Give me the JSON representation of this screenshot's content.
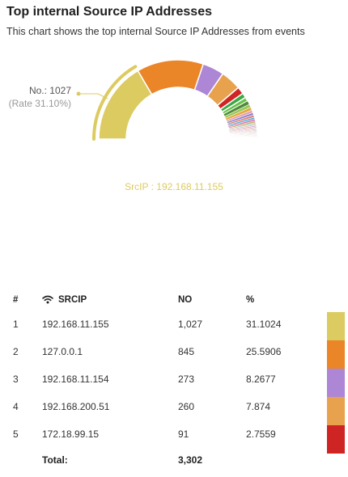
{
  "title": "Top internal Source IP Addresses",
  "subtitle": "This chart shows the top internal Source IP Addresses from events",
  "tooltip": {
    "no_text": "No.: 1027",
    "rate_text": "(Rate 31.10%)"
  },
  "selected_label": "SrcIP : 192.168.11.155",
  "table": {
    "headers": {
      "index": "#",
      "srcip": "SRCIP",
      "no": "NO",
      "pct": "%"
    },
    "rows": [
      {
        "index": "1",
        "ip": "192.168.11.155",
        "no": "1,027",
        "pct": "31.1024",
        "color": "#dccb60"
      },
      {
        "index": "2",
        "ip": "127.0.0.1",
        "no": "845",
        "pct": "25.5906",
        "color": "#ea8528"
      },
      {
        "index": "3",
        "ip": "192.168.11.154",
        "no": "273",
        "pct": "8.2677",
        "color": "#ad86d6"
      },
      {
        "index": "4",
        "ip": "192.168.200.51",
        "no": "260",
        "pct": "7.874",
        "color": "#e8a24e"
      },
      {
        "index": "5",
        "ip": "172.18.99.15",
        "no": "91",
        "pct": "2.7559",
        "color": "#cf2424"
      }
    ],
    "total_label": "Total:",
    "total_value": "3,302"
  },
  "chart_data": {
    "type": "pie",
    "variant": "half-donut",
    "total": 3302,
    "selected_index": 0,
    "slices": [
      {
        "label": "192.168.11.155",
        "value": 1027,
        "color": "#dccb60"
      },
      {
        "label": "127.0.0.1",
        "value": 845,
        "color": "#ea8528"
      },
      {
        "label": "192.168.11.154",
        "value": 273,
        "color": "#ad86d6"
      },
      {
        "label": "192.168.200.51",
        "value": 260,
        "color": "#e8a24e"
      },
      {
        "value": 91,
        "color": "#cf2424"
      },
      {
        "value": 60,
        "color": "#3aa845"
      },
      {
        "value": 52,
        "color": "#6cc04a"
      },
      {
        "value": 46,
        "color": "#4e8a3a"
      },
      {
        "value": 42,
        "color": "#9cc85a"
      },
      {
        "value": 38,
        "color": "#e5a83a"
      },
      {
        "value": 34,
        "color": "#e6a0b0"
      },
      {
        "value": 31,
        "color": "#8a84d0"
      },
      {
        "value": 28,
        "color": "#e27a70"
      },
      {
        "value": 25,
        "color": "#5ab0d8"
      },
      {
        "value": 23,
        "color": "#d86ab0"
      },
      {
        "value": 21,
        "color": "#c8a25a"
      },
      {
        "value": 19,
        "color": "#9ad0c0"
      },
      {
        "value": 17,
        "color": "#e8b8a0"
      },
      {
        "value": 16,
        "color": "#d0a8d8"
      },
      {
        "value": 15,
        "color": "#f0a8a8"
      },
      {
        "value": 14,
        "color": "#c8c8c8"
      },
      {
        "value": 13,
        "color": "#e0b0b0"
      },
      {
        "value": 12,
        "color": "#d8c0c0"
      },
      {
        "value": 11,
        "color": "#e0c8c8"
      },
      {
        "value": 10,
        "color": "#d0b8b8"
      },
      {
        "value": 10,
        "color": "#e8d0d0"
      },
      {
        "value": 9,
        "color": "#c8b0b0"
      },
      {
        "value": 9,
        "color": "#e0c0b8"
      },
      {
        "value": 8,
        "color": "#d8c8c0"
      },
      {
        "value": 8,
        "color": "#e8c8c0"
      },
      {
        "value": 7,
        "color": "#d0c0c0"
      },
      {
        "value": 7,
        "color": "#e0d0c8"
      },
      {
        "value": 6,
        "color": "#c8b8b8"
      },
      {
        "value": 6,
        "color": "#e8d8d0"
      },
      {
        "value": 5,
        "color": "#d8c8c8"
      },
      {
        "value": 5,
        "color": "#e0d0d0"
      }
    ]
  }
}
